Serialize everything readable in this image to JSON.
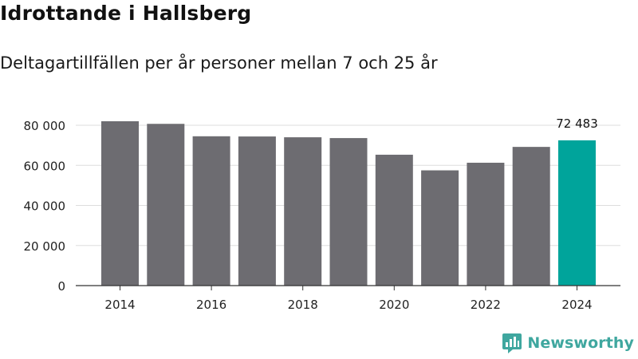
{
  "title": "Idrottande i Hallsberg",
  "subtitle": "Deltagartillfällen per år personer mellan 7 och 25 år",
  "brand": {
    "name": "Newsworthy",
    "color": "#3fa79f"
  },
  "colors": {
    "bar": "#6d6c71",
    "highlight": "#00a49b",
    "grid": "#dddddd",
    "axis": "#333333"
  },
  "chart_data": {
    "type": "bar",
    "title": "Idrottande i Hallsberg",
    "subtitle": "Deltagartillfällen per år personer mellan 7 och 25 år",
    "xlabel": "",
    "ylabel": "",
    "ylim": [
      0,
      80000
    ],
    "yticks": [
      0,
      20000,
      40000,
      60000,
      80000
    ],
    "ytick_labels": [
      "0",
      "20 000",
      "40 000",
      "60 000",
      "80 000"
    ],
    "categories": [
      "2014",
      "2015",
      "2016",
      "2017",
      "2018",
      "2019",
      "2020",
      "2021",
      "2022",
      "2023",
      "2024"
    ],
    "xtick_labels": [
      "2014",
      "2016",
      "2018",
      "2020",
      "2022",
      "2024"
    ],
    "values": [
      82000,
      80700,
      74500,
      74400,
      74000,
      73600,
      65300,
      57500,
      61300,
      69200,
      72483
    ],
    "highlight_index": 10,
    "highlight_label": "72 483",
    "grid": true
  }
}
